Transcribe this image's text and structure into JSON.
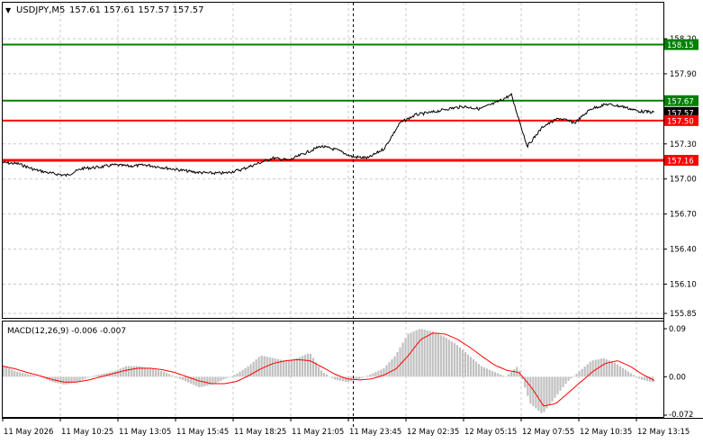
{
  "header": {
    "symbol": "USDJPY,M5",
    "ohlc": "157.61 157.61 157.57 157.57"
  },
  "macd": {
    "label": "MACD(12,26,9) -0.006 -0.007",
    "axis": [
      "0.09",
      "0.00",
      "-0.072"
    ]
  },
  "price_axis": [
    "158.20",
    "157.90",
    "157.50",
    "157.30",
    "157.00",
    "156.70",
    "156.40",
    "156.10",
    "155.85"
  ],
  "levels": [
    {
      "value": 158.15,
      "label": "158.15",
      "color": "#008000"
    },
    {
      "value": 157.67,
      "label": "157.67",
      "color": "#008000"
    },
    {
      "value": 157.57,
      "label": "157.57",
      "color": "#000000",
      "current": true
    },
    {
      "value": 157.5,
      "label": "157.50",
      "color": "#ff0000"
    },
    {
      "value": 157.16,
      "label": "157.16",
      "color": "#ff0000"
    }
  ],
  "time_axis": [
    "11 May 2026",
    "11 May 10:25",
    "11 May 13:05",
    "11 May 15:45",
    "11 May 18:25",
    "11 May 21:05",
    "11 May 23:45",
    "12 May 02:35",
    "12 May 05:15",
    "12 May 07:55",
    "12 May 10:35",
    "12 May 13:15"
  ],
  "chart_data": {
    "type": "line",
    "price_series": [
      157.14,
      157.13,
      157.08,
      157.05,
      157.03,
      157.09,
      157.1,
      157.12,
      157.11,
      157.12,
      157.1,
      157.08,
      157.06,
      157.05,
      157.05,
      157.08,
      157.13,
      157.18,
      157.16,
      157.22,
      157.28,
      157.25,
      157.19,
      157.18,
      157.26,
      157.48,
      157.55,
      157.57,
      157.6,
      157.62,
      157.6,
      157.65,
      157.72,
      157.28,
      157.45,
      157.52,
      157.48,
      157.6,
      157.64,
      157.62,
      157.58,
      157.57
    ],
    "macd_hist": [
      0.02,
      0.01,
      0.005,
      0.0,
      -0.01,
      -0.015,
      -0.01,
      0.0,
      0.005,
      0.01,
      0.02,
      0.02,
      0.015,
      0.01,
      0.0,
      -0.01,
      -0.02,
      -0.015,
      -0.005,
      0.005,
      0.02,
      0.04,
      0.035,
      0.03,
      0.035,
      0.045,
      0.01,
      -0.005,
      -0.01,
      -0.005,
      0.005,
      0.015,
      0.04,
      0.08,
      0.09,
      0.085,
      0.075,
      0.06,
      0.04,
      0.02,
      0.01,
      0.0,
      0.02,
      -0.05,
      -0.07,
      -0.04,
      -0.01,
      0.01,
      0.03,
      0.035,
      0.025,
      0.01,
      -0.005,
      -0.01
    ],
    "macd_signal": [
      0.02,
      0.015,
      0.008,
      0.002,
      -0.005,
      -0.01,
      -0.01,
      -0.006,
      0.0,
      0.006,
      0.012,
      0.016,
      0.016,
      0.013,
      0.008,
      0.0,
      -0.008,
      -0.013,
      -0.013,
      -0.009,
      0.002,
      0.015,
      0.025,
      0.03,
      0.032,
      0.03,
      0.018,
      0.005,
      -0.004,
      -0.006,
      -0.004,
      0.003,
      0.015,
      0.04,
      0.07,
      0.082,
      0.08,
      0.07,
      0.055,
      0.038,
      0.022,
      0.012,
      0.008,
      -0.02,
      -0.055,
      -0.05,
      -0.03,
      -0.01,
      0.01,
      0.025,
      0.03,
      0.02,
      0.005,
      -0.007
    ]
  }
}
